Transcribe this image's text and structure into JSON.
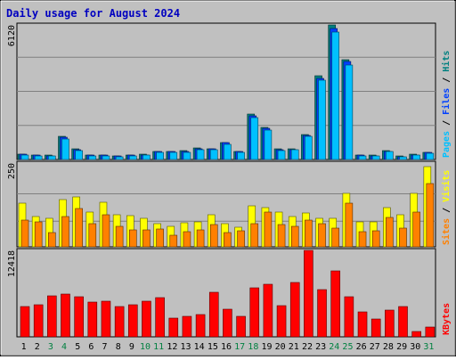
{
  "chart_data": {
    "type": "bar",
    "title": "Daily usage for August 2024",
    "categories": [
      "1",
      "2",
      "3",
      "4",
      "5",
      "6",
      "7",
      "8",
      "9",
      "10",
      "11",
      "12",
      "13",
      "14",
      "15",
      "16",
      "17",
      "18",
      "19",
      "20",
      "21",
      "22",
      "23",
      "24",
      "25",
      "26",
      "27",
      "28",
      "29",
      "30",
      "31"
    ],
    "weekend_days": [
      "3",
      "4",
      "10",
      "11",
      "17",
      "18",
      "24",
      "25",
      "31"
    ],
    "panels": [
      {
        "name": "top",
        "max_label": "6120",
        "ylim": [
          0,
          6120
        ],
        "side_label": [
          {
            "text": "Pages",
            "color": "#00c0ff"
          },
          {
            "text": " / ",
            "color": "#000000"
          },
          {
            "text": "Files",
            "color": "#0040ff"
          },
          {
            "text": " / ",
            "color": "#000000"
          },
          {
            "text": "Hits",
            "color": "#008080"
          }
        ],
        "series": [
          {
            "name": "Hits",
            "color": "#008080",
            "values": [
              250,
              210,
              190,
              1050,
              480,
              210,
              220,
              180,
              210,
              240,
              370,
              380,
              390,
              520,
              500,
              780,
              380,
              2050,
              1450,
              470,
              480,
              1150,
              3800,
              6120,
              4550,
              210,
              190,
              400,
              160,
              240,
              340
            ]
          },
          {
            "name": "Files",
            "color": "#0040ff",
            "values": [
              230,
              190,
              170,
              1000,
              450,
              190,
              200,
              160,
              190,
              220,
              350,
              360,
              370,
              500,
              480,
              750,
              360,
              1980,
              1400,
              450,
              460,
              1100,
              3700,
              5950,
              4450,
              190,
              170,
              380,
              140,
              220,
              320
            ]
          },
          {
            "name": "Pages",
            "color": "#00c0ff",
            "values": [
              200,
              170,
              150,
              950,
              420,
              170,
              180,
              140,
              170,
              200,
              320,
              330,
              340,
              460,
              440,
              700,
              330,
              1900,
              1350,
              420,
              430,
              1050,
              3600,
              5800,
              4300,
              170,
              150,
              350,
              120,
              200,
              300
            ]
          }
        ]
      },
      {
        "name": "middle",
        "max_label": "250",
        "ylim": [
          0,
          250
        ],
        "side_label": [
          {
            "text": "Sites",
            "color": "#ff8000"
          },
          {
            "text": " / ",
            "color": "#000000"
          },
          {
            "text": "Visits",
            "color": "#ffff00"
          }
        ],
        "series": [
          {
            "name": "Visits",
            "color": "#ffff00",
            "values": [
              130,
              90,
              85,
              140,
              148,
              105,
              133,
              95,
              92,
              85,
              70,
              60,
              73,
              75,
              95,
              70,
              58,
              122,
              118,
              103,
              90,
              100,
              85,
              85,
              160,
              75,
              75,
              117,
              95,
              160,
              240
            ]
          },
          {
            "name": "Sites",
            "color": "#ff8000",
            "values": [
              80,
              75,
              42,
              90,
              115,
              70,
              95,
              62,
              50,
              50,
              52,
              35,
              45,
              50,
              67,
              42,
              47,
              70,
              105,
              67,
              60,
              80,
              70,
              55,
              130,
              45,
              48,
              88,
              55,
              105,
              190
            ]
          }
        ]
      },
      {
        "name": "bottom",
        "max_label": "12418",
        "ylim": [
          0,
          12418
        ],
        "side_label": [
          {
            "text": "KBytes",
            "color": "#ff0000"
          }
        ],
        "series": [
          {
            "name": "KBytes",
            "color": "#ff0000",
            "values": [
              4300,
              4600,
              5900,
              6100,
              5800,
              5050,
              5100,
              4350,
              4600,
              5100,
              5600,
              2700,
              3000,
              3200,
              6400,
              4000,
              2900,
              7000,
              7500,
              4450,
              7800,
              12418,
              6800,
              9450,
              5700,
              3600,
              2500,
              3800,
              4400,
              800,
              1400
            ]
          }
        ]
      }
    ]
  }
}
